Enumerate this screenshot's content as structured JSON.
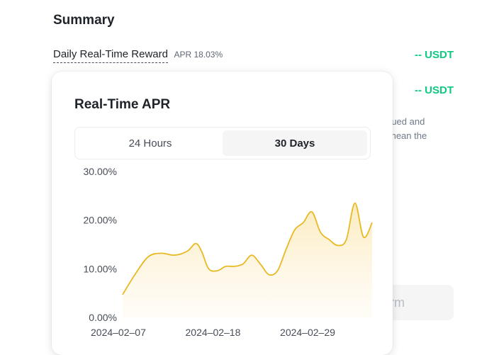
{
  "summary": {
    "title": "Summary",
    "reward_label": "Daily Real-Time Reward",
    "apr_tag": "APR 18.03%",
    "reward_value": "-- USDT",
    "second_value": "-- USDT",
    "note_line1": "rued and",
    "note_line2": "mean the",
    "confirm_partial": "rm"
  },
  "popover": {
    "title": "Real-Time APR",
    "tabs": [
      {
        "label": "24 Hours",
        "active": false
      },
      {
        "label": "30 Days",
        "active": true
      }
    ]
  },
  "colors": {
    "accent_green": "#0ecb81",
    "line": "#e8b923",
    "fill_top": "#fbe9b7",
    "fill_bottom": "#fffaf0"
  },
  "chart_data": {
    "type": "area",
    "title": "Real-Time APR",
    "xlabel": "",
    "ylabel": "",
    "ylim": [
      0,
      30
    ],
    "y_ticks": [
      "0.00%",
      "10.00%",
      "20.00%",
      "30.00%"
    ],
    "y_tick_values": [
      0,
      10,
      20,
      30
    ],
    "x_ticks": [
      "2024–02–07",
      "2024–02–18",
      "2024–02–29"
    ],
    "x_tick_positions": [
      0,
      11,
      22
    ],
    "x_range": [
      0,
      29
    ],
    "series": [
      {
        "values": [
          [
            0,
            4.7
          ],
          [
            1.5,
            9.0
          ],
          [
            3,
            12.5
          ],
          [
            4.5,
            13.2
          ],
          [
            6,
            12.8
          ],
          [
            7.5,
            13.6
          ],
          [
            8.5,
            15.2
          ],
          [
            9.2,
            13.5
          ],
          [
            10,
            10.0
          ],
          [
            11,
            9.6
          ],
          [
            12,
            10.5
          ],
          [
            13,
            10.5
          ],
          [
            14,
            11.0
          ],
          [
            15,
            12.8
          ],
          [
            16,
            11.0
          ],
          [
            17,
            8.8
          ],
          [
            18,
            9.6
          ],
          [
            19,
            14.0
          ],
          [
            20,
            18.0
          ],
          [
            21,
            19.5
          ],
          [
            22,
            21.7
          ],
          [
            23,
            17.5
          ],
          [
            24,
            16.0
          ],
          [
            25,
            14.8
          ],
          [
            26,
            16.0
          ],
          [
            27,
            23.5
          ],
          [
            28,
            16.5
          ],
          [
            29,
            19.5
          ]
        ]
      }
    ]
  }
}
